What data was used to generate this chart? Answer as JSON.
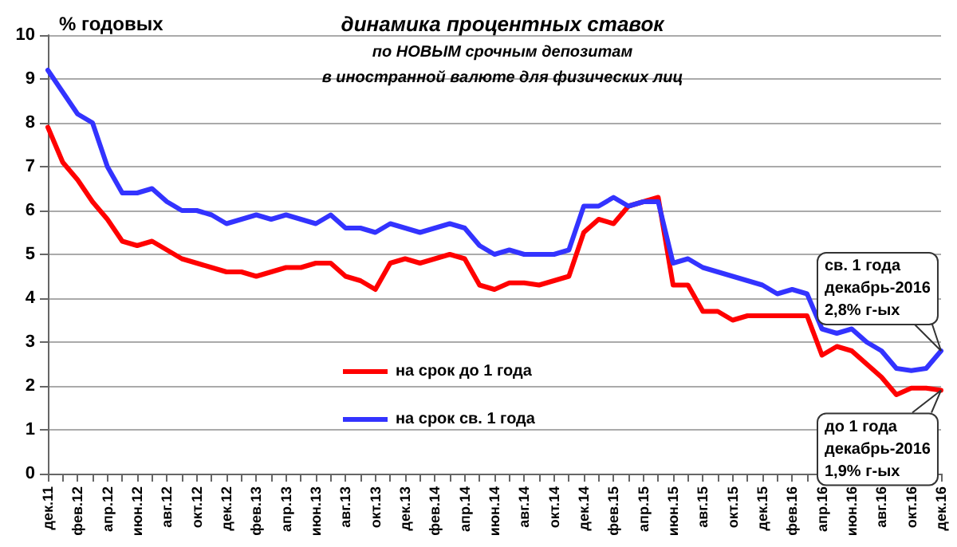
{
  "chart_data": {
    "type": "line",
    "title": "динамика процентных ставок",
    "subtitle": "по НОВЫМ срочным депозитам\nв иностранной валюте для физических лиц",
    "ylabel": "% годовых",
    "categories": [
      "дек.11",
      null,
      "фев.12",
      null,
      "апр.12",
      null,
      "июн.12",
      null,
      "авг.12",
      null,
      "окт.12",
      null,
      "дек.12",
      null,
      "фев.13",
      null,
      "апр.13",
      null,
      "июн.13",
      null,
      "авг.13",
      null,
      "окт.13",
      null,
      "дек.13",
      null,
      "фев.14",
      null,
      "апр.14",
      null,
      "июн.14",
      null,
      "авг.14",
      null,
      "окт.14",
      null,
      "дек.14",
      null,
      "фев.15",
      null,
      "апр.15",
      null,
      "июн.15",
      null,
      "авг.15",
      null,
      "окт.15",
      null,
      "дек.15",
      null,
      "фев.16",
      null,
      "апр.16",
      null,
      "июн.16",
      null,
      "авг.16",
      null,
      "окт.16",
      null,
      "дек.16"
    ],
    "series": [
      {
        "name": "на срок до 1 года",
        "color": "#ff0000",
        "values": [
          7.9,
          7.1,
          6.7,
          6.2,
          5.8,
          5.3,
          5.2,
          5.3,
          5.1,
          4.9,
          4.8,
          4.7,
          4.6,
          4.6,
          4.5,
          4.6,
          4.7,
          4.7,
          4.8,
          4.8,
          4.5,
          4.4,
          4.2,
          4.8,
          4.9,
          4.8,
          4.9,
          5.0,
          4.9,
          4.3,
          4.2,
          4.35,
          4.35,
          4.3,
          4.4,
          4.5,
          5.5,
          5.8,
          5.7,
          6.1,
          6.2,
          6.3,
          4.3,
          4.3,
          3.7,
          3.7,
          3.5,
          3.6,
          3.6,
          3.6,
          3.6,
          3.6,
          2.7,
          2.9,
          2.8,
          2.5,
          2.2,
          1.8,
          1.95,
          1.95,
          1.9
        ]
      },
      {
        "name": "на срок св. 1 года",
        "color": "#3333ff",
        "values": [
          9.2,
          8.7,
          8.2,
          8.0,
          7.0,
          6.4,
          6.4,
          6.5,
          6.2,
          6.0,
          6.0,
          5.9,
          5.7,
          5.8,
          5.9,
          5.8,
          5.9,
          5.8,
          5.7,
          5.9,
          5.6,
          5.6,
          5.5,
          5.7,
          5.6,
          5.5,
          5.6,
          5.7,
          5.6,
          5.2,
          5.0,
          5.1,
          5.0,
          5.0,
          5.0,
          5.1,
          6.1,
          6.1,
          6.3,
          6.1,
          6.2,
          6.2,
          4.8,
          4.9,
          4.7,
          4.6,
          4.5,
          4.4,
          4.3,
          4.1,
          4.2,
          4.1,
          3.3,
          3.2,
          3.3,
          3.0,
          2.8,
          2.4,
          2.35,
          2.4,
          2.8
        ]
      }
    ],
    "ylim": [
      0,
      10
    ],
    "yticks": [
      0,
      1,
      2,
      3,
      4,
      5,
      6,
      7,
      8,
      9,
      10
    ],
    "grid": "y",
    "legend": "bottom left",
    "marker": "none",
    "line_style": "solid",
    "annotations": [
      {
        "text": "св. 1 года\nдекабрь-2016\n2,8% г-ых",
        "x": "дек.16",
        "y": 2.8
      },
      {
        "text": "до 1 года\nдекабрь-2016\n1,9% г-ых",
        "x": "дек.16",
        "y": 1.9
      }
    ]
  }
}
